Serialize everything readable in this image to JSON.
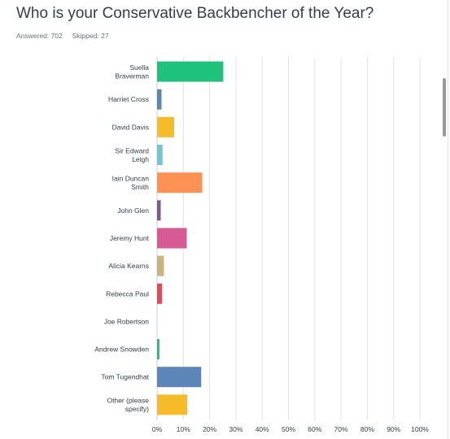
{
  "title": "Who is your Conservative Backbencher of the Year?",
  "meta": {
    "answered_label": "Answered: 702",
    "skipped_label": "Skipped: 27"
  },
  "colors": {
    "grid": "#e3e3e3",
    "axis_text": "#333e48"
  },
  "chart_data": {
    "type": "bar",
    "orientation": "horizontal",
    "categories": [
      [
        "Suella",
        "Braverman"
      ],
      [
        "Harriet Cross"
      ],
      [
        "David Davis"
      ],
      [
        "Sir Edward",
        "Leigh"
      ],
      [
        "Iain Duncan",
        "Smith"
      ],
      [
        "John Glen"
      ],
      [
        "Jeremy Hunt"
      ],
      [
        "Alicia Kearns"
      ],
      [
        "Rebecca Paul"
      ],
      [
        "Joe Robertson"
      ],
      [
        "Andrew Snowden"
      ],
      [
        "Tom Tugendhat"
      ],
      [
        "Other (please",
        "specify)"
      ]
    ],
    "values": [
      25.2,
      1.7,
      6.5,
      2.1,
      17.2,
      1.4,
      11.3,
      2.6,
      1.9,
      0.0,
      0.9,
      16.8,
      11.5
    ],
    "bar_colors": [
      "#1ec27a",
      "#5c86b8",
      "#f7bb2a",
      "#6fc7d6",
      "#ff9155",
      "#7b5b95",
      "#d65a93",
      "#c9b67e",
      "#e14a58",
      "#cccccc",
      "#1ec27a",
      "#5c86b8",
      "#f7bb2a"
    ],
    "xlim": [
      0,
      100
    ],
    "ticks": [
      "0%",
      "10%",
      "20%",
      "30%",
      "40%",
      "50%",
      "60%",
      "70%",
      "80%",
      "90%",
      "100%"
    ],
    "tick_values": [
      0,
      10,
      20,
      30,
      40,
      50,
      60,
      70,
      80,
      90,
      100
    ],
    "grid": true
  }
}
